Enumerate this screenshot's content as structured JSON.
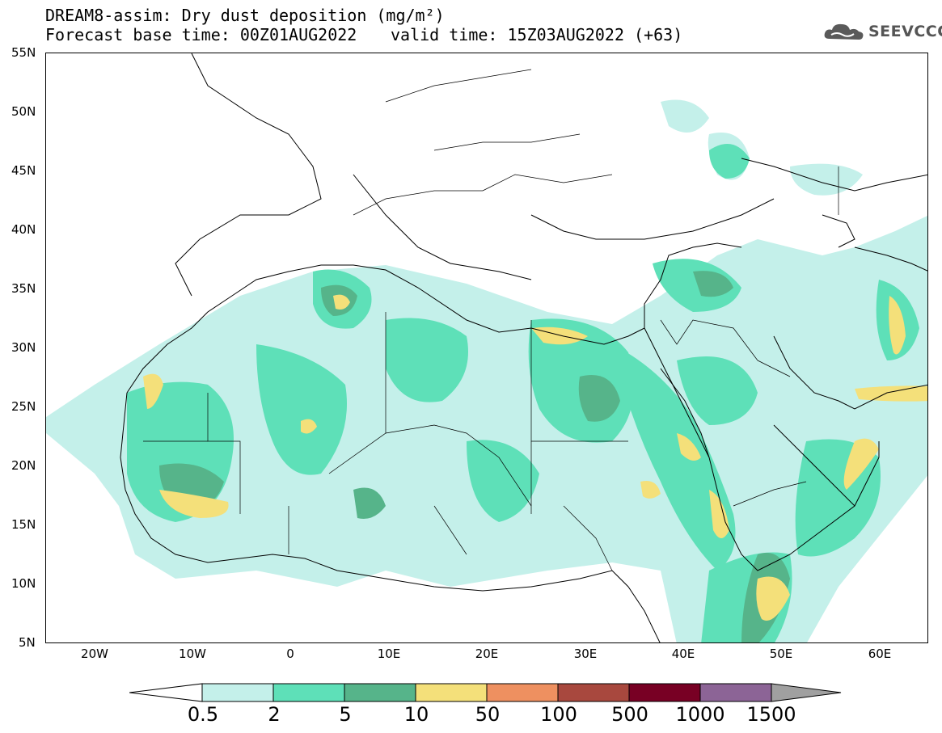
{
  "title": {
    "line1": "DREAM8-assim: Dry dust deposition (mg/m²)",
    "line2": "Forecast base time: 00Z01AUG2022",
    "valid": "valid time: 15Z03AUG2022 (+63)"
  },
  "logo": {
    "icon": "cloud-icon",
    "text": "SEEVCCC"
  },
  "lat_ticks": [
    "55N",
    "50N",
    "45N",
    "40N",
    "35N",
    "30N",
    "25N",
    "20N",
    "15N",
    "10N",
    "5N"
  ],
  "lon_ticks": [
    "20W",
    "10W",
    "0",
    "10E",
    "20E",
    "30E",
    "40E",
    "50E",
    "60E"
  ],
  "legend": {
    "labels": [
      "0.5",
      "2",
      "5",
      "10",
      "50",
      "100",
      "500",
      "1000",
      "1500"
    ],
    "colors": [
      "#ffffff",
      "#c4f0ea",
      "#5ee0b8",
      "#56b48a",
      "#f4e07a",
      "#ee9060",
      "#a8483e",
      "#780024",
      "#8c6496",
      "#a0a0a0"
    ]
  }
}
